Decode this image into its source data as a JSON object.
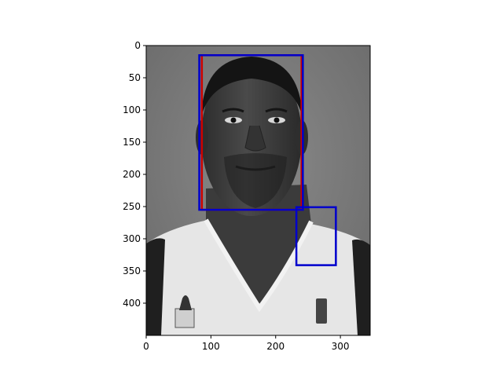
{
  "figure": {
    "image_content": "grayscale-portrait-photo",
    "x_ticks": [
      0,
      100,
      200,
      300
    ],
    "y_ticks": [
      0,
      50,
      100,
      150,
      200,
      250,
      300,
      350,
      400
    ],
    "xlim": [
      0,
      346
    ],
    "ylim": [
      450,
      0
    ],
    "boxes": [
      {
        "label_color": "#cc0000",
        "x0": 86,
        "y0": 15,
        "x1": 240,
        "y1": 255
      },
      {
        "label_color": "#0000cc",
        "x0": 82,
        "y0": 15,
        "x1": 242,
        "y1": 255
      },
      {
        "label_color": "#0000cc",
        "x0": 232,
        "y0": 251,
        "x1": 293,
        "y1": 341
      }
    ]
  }
}
